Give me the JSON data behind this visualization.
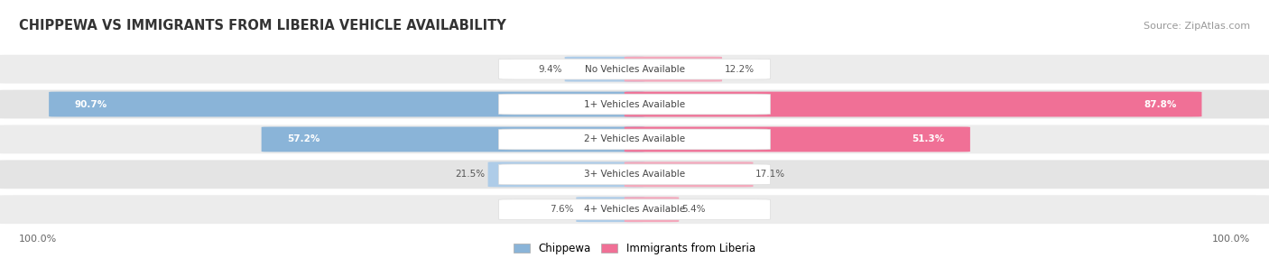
{
  "title": "CHIPPEWA VS IMMIGRANTS FROM LIBERIA VEHICLE AVAILABILITY",
  "source": "Source: ZipAtlas.com",
  "categories": [
    "No Vehicles Available",
    "1+ Vehicles Available",
    "2+ Vehicles Available",
    "3+ Vehicles Available",
    "4+ Vehicles Available"
  ],
  "chippewa": [
    9.4,
    90.7,
    57.2,
    21.5,
    7.6
  ],
  "liberia": [
    12.2,
    87.8,
    51.3,
    17.1,
    5.4
  ],
  "chippewa_color": "#8ab4d8",
  "liberia_color": "#f07096",
  "chippewa_color_light": "#aecce8",
  "liberia_color_light": "#f4a8bc",
  "figsize": [
    14.06,
    2.86
  ],
  "dpi": 100
}
